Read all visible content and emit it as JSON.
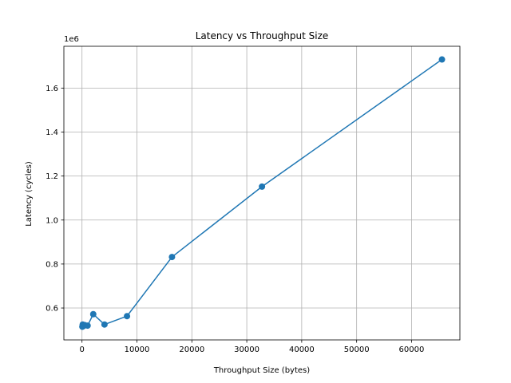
{
  "chart_data": {
    "type": "line",
    "title": "Latency vs Throughput Size",
    "xlabel": "Throughput Size (bytes)",
    "ylabel": "Latency (cycles)",
    "y_multiplier_label": "1e6",
    "x_ticks": [
      "0",
      "10000",
      "20000",
      "30000",
      "40000",
      "50000",
      "60000"
    ],
    "y_ticks": [
      "0.6",
      "0.8",
      "1.0",
      "1.2",
      "1.4",
      "1.6"
    ],
    "xlim": [
      -3300,
      68800
    ],
    "ylim": [
      0.455,
      1.79
    ],
    "grid": true,
    "markers": true,
    "colors": {
      "series": "#1f77b4",
      "grid": "#b0b0b0",
      "axis": "#000000"
    },
    "series": [
      {
        "x": [
          64,
          128,
          256,
          512,
          1024,
          2048,
          4096,
          8192,
          16384,
          32768,
          65536
        ],
        "y": [
          0.515,
          0.525,
          0.518,
          0.522,
          0.52,
          0.572,
          0.525,
          0.563,
          0.832,
          1.152,
          1.73
        ]
      }
    ]
  }
}
